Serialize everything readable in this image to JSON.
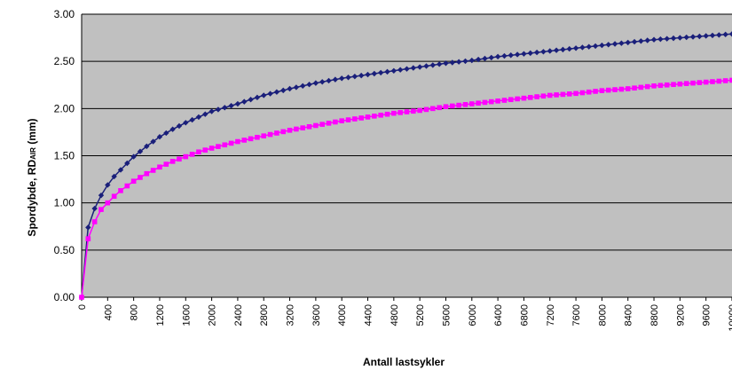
{
  "chart_data": {
    "type": "line",
    "xlabel": "Antall lastsykler",
    "ylabel_main": "Spordybde, RD",
    "ylabel_sub": "AIR",
    "ylabel_unit": " (mm)",
    "ylim": [
      0,
      3
    ],
    "xlim": [
      0,
      10000
    ],
    "y_ticks": [
      "0.00",
      "0.50",
      "1.00",
      "1.50",
      "2.00",
      "2.50",
      "3.00"
    ],
    "x_ticks": [
      "0",
      "400",
      "800",
      "1200",
      "1600",
      "2000",
      "2400",
      "2800",
      "3200",
      "3600",
      "4000",
      "4400",
      "4800",
      "5200",
      "5600",
      "6000",
      "6400",
      "6800",
      "7200",
      "7600",
      "8000",
      "8400",
      "8800",
      "9200",
      "9600",
      "10000"
    ],
    "grid": "horizontal",
    "plot_background": "#c0c0c0",
    "series": [
      {
        "color": "#1a1f7a",
        "marker": "diamond",
        "x": [
          0,
          100,
          200,
          300,
          400,
          500,
          600,
          800,
          1000,
          1200,
          1400,
          1600,
          1800,
          2000,
          2400,
          2800,
          3200,
          3600,
          4000,
          4400,
          4800,
          5200,
          5600,
          6000,
          6400,
          6800,
          7200,
          7600,
          8000,
          8400,
          8800,
          9200,
          9600,
          10000
        ],
        "y": [
          0.0,
          0.74,
          0.94,
          1.08,
          1.19,
          1.28,
          1.35,
          1.49,
          1.6,
          1.7,
          1.78,
          1.85,
          1.91,
          1.97,
          2.05,
          2.14,
          2.21,
          2.27,
          2.32,
          2.36,
          2.4,
          2.44,
          2.48,
          2.51,
          2.55,
          2.58,
          2.61,
          2.64,
          2.67,
          2.7,
          2.73,
          2.75,
          2.77,
          2.79
        ]
      },
      {
        "color": "#ff00ff",
        "marker": "square",
        "x": [
          0,
          100,
          200,
          300,
          400,
          500,
          600,
          800,
          1000,
          1200,
          1400,
          1600,
          1800,
          2000,
          2400,
          2800,
          3200,
          3600,
          4000,
          4400,
          4800,
          5200,
          5600,
          6000,
          6400,
          6800,
          7200,
          7600,
          8000,
          8400,
          8800,
          9200,
          9600,
          10000
        ],
        "y": [
          0.0,
          0.62,
          0.8,
          0.93,
          1.0,
          1.07,
          1.13,
          1.23,
          1.31,
          1.38,
          1.44,
          1.49,
          1.54,
          1.58,
          1.65,
          1.71,
          1.77,
          1.82,
          1.87,
          1.91,
          1.95,
          1.98,
          2.02,
          2.05,
          2.08,
          2.11,
          2.14,
          2.16,
          2.19,
          2.21,
          2.24,
          2.26,
          2.28,
          2.3
        ]
      }
    ]
  }
}
